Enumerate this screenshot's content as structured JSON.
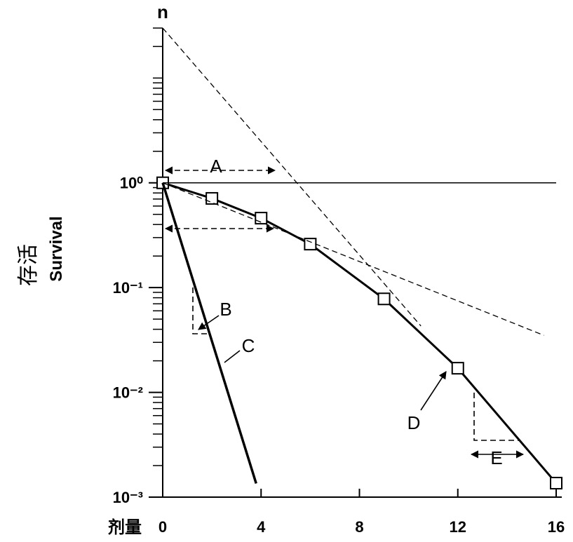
{
  "chart_data": {
    "type": "line",
    "y_axis_symbol": "n",
    "y_label": "存活",
    "y_label_en": "Survival",
    "x_label": "剂量",
    "xlim": [
      0,
      16
    ],
    "xticks": [
      0,
      4,
      8,
      12,
      16
    ],
    "ylim": [
      0.001,
      30
    ],
    "log_y": true,
    "yticks": [
      {
        "value": 1,
        "label": "10⁰"
      },
      {
        "value": 0.1,
        "label": "10⁻¹"
      },
      {
        "value": 0.01,
        "label": "10⁻²"
      },
      {
        "value": 0.001,
        "label": "10⁻³"
      }
    ],
    "y_minor_ticks": [
      0.002,
      0.003,
      0.004,
      0.005,
      0.006,
      0.007,
      0.008,
      0.009,
      0.02,
      0.03,
      0.04,
      0.05,
      0.06,
      0.07,
      0.08,
      0.09,
      0.2,
      0.3,
      0.4,
      0.5,
      0.6,
      0.7,
      0.8,
      0.9,
      2,
      3,
      4,
      5,
      6,
      7,
      8,
      9,
      10,
      20,
      30
    ],
    "series": [
      {
        "label": "D",
        "color": "#000000",
        "style": "solid",
        "width": 3,
        "marker": "square",
        "x": [
          0,
          2,
          4,
          6,
          9,
          12,
          16
        ],
        "values": [
          1,
          0.71,
          0.46,
          0.26,
          0.078,
          0.017,
          0.00136
        ]
      },
      {
        "label": "C",
        "color": "#000000",
        "style": "solid",
        "width": 3.5,
        "marker": "none",
        "x": [
          0,
          3.8
        ],
        "values": [
          1,
          0.00135
        ]
      },
      {
        "color": "#000000",
        "style": "dashed",
        "width": 1.3,
        "marker": "none",
        "x": [
          0,
          10.5
        ],
        "values": [
          30,
          0.043
        ]
      },
      {
        "color": "#000000",
        "style": "dashed",
        "width": 1.3,
        "marker": "none",
        "x": [
          0,
          15.5
        ],
        "values": [
          1,
          0.035
        ]
      },
      {
        "color": "#000000",
        "style": "solid",
        "width": 1.5,
        "marker": "none",
        "x": [
          0,
          16
        ],
        "values": [
          1,
          1
        ]
      }
    ],
    "annotations": [
      "A",
      "B",
      "E"
    ]
  }
}
